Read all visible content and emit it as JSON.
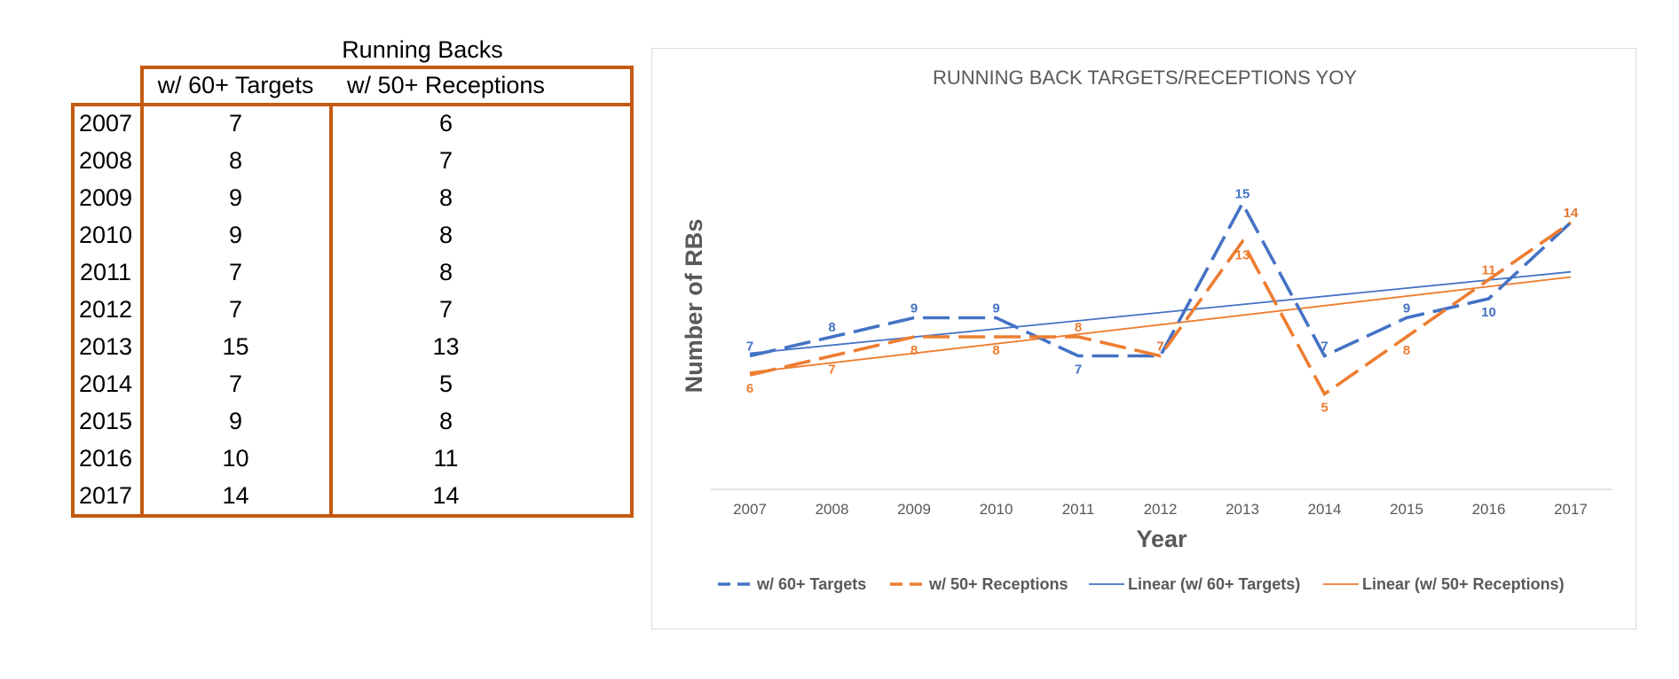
{
  "table": {
    "caption": "Running Backs",
    "headers": [
      "w/ 60+ Targets",
      "w/ 50+ Receptions"
    ],
    "rows": [
      {
        "year": "2007",
        "targets": "7",
        "receptions": "6"
      },
      {
        "year": "2008",
        "targets": "8",
        "receptions": "7"
      },
      {
        "year": "2009",
        "targets": "9",
        "receptions": "8"
      },
      {
        "year": "2010",
        "targets": "9",
        "receptions": "8"
      },
      {
        "year": "2011",
        "targets": "7",
        "receptions": "8"
      },
      {
        "year": "2012",
        "targets": "7",
        "receptions": "7"
      },
      {
        "year": "2013",
        "targets": "15",
        "receptions": "13"
      },
      {
        "year": "2014",
        "targets": "7",
        "receptions": "5"
      },
      {
        "year": "2015",
        "targets": "9",
        "receptions": "8"
      },
      {
        "year": "2016",
        "targets": "10",
        "receptions": "11"
      },
      {
        "year": "2017",
        "targets": "14",
        "receptions": "14"
      }
    ],
    "border_color": "#c55a11"
  },
  "chart_data": {
    "type": "line",
    "title": "RUNNING BACK TARGETS/RECEPTIONS YOY",
    "xlabel": "Year",
    "ylabel": "Number of RBs",
    "ylim": [
      0,
      18
    ],
    "categories": [
      "2007",
      "2008",
      "2009",
      "2010",
      "2011",
      "2012",
      "2013",
      "2014",
      "2015",
      "2016",
      "2017"
    ],
    "series": [
      {
        "name": "w/ 60+ Targets",
        "values": [
          7,
          8,
          9,
          9,
          7,
          7,
          15,
          7,
          9,
          10,
          14
        ],
        "color": "#4472c4",
        "style": "dashed"
      },
      {
        "name": "w/ 50+ Receptions",
        "values": [
          6,
          7,
          8,
          8,
          8,
          7,
          13,
          5,
          8,
          11,
          14
        ],
        "color": "#ed7d31",
        "style": "dashed"
      }
    ],
    "trendlines": [
      {
        "name": "Linear (w/ 60+ Targets)",
        "of": "w/ 60+ Targets",
        "type": "linear",
        "color": "#4472c4"
      },
      {
        "name": "Linear (w/ 50+ Receptions)",
        "of": "w/ 50+ Receptions",
        "type": "linear",
        "color": "#ed7d31"
      }
    ],
    "legend_position": "bottom",
    "gridlines": false
  }
}
